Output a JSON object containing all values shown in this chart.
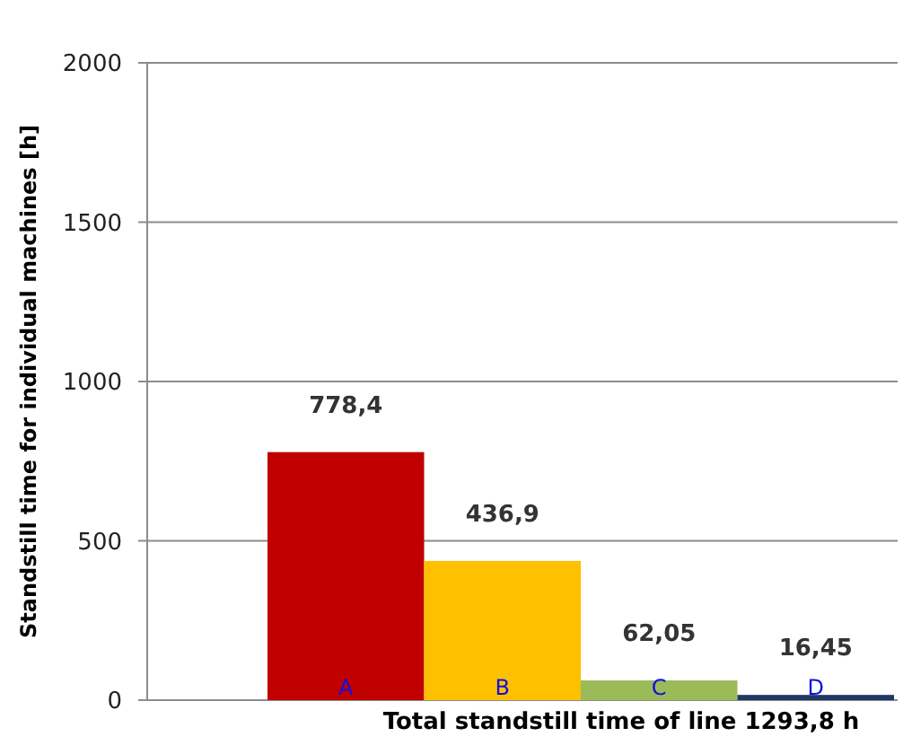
{
  "chart_data": {
    "type": "bar",
    "xlabel": "Total standstill time of line 1293,8 h",
    "ylabel": "Standstill time for individual machines [h]",
    "categories": [
      "A",
      "B",
      "C",
      "D"
    ],
    "values": [
      778.4,
      436.9,
      62.05,
      16.45
    ],
    "colors": [
      "#c00000",
      "#ffc000",
      "#9bbb59",
      "#1f3864"
    ],
    "value_labels": [
      "778,4",
      "436,9",
      "62,05",
      "16,45"
    ],
    "ylim": [
      0,
      2000
    ],
    "yticks": [
      0,
      500,
      1000,
      1500,
      2000
    ],
    "grid": "y"
  }
}
